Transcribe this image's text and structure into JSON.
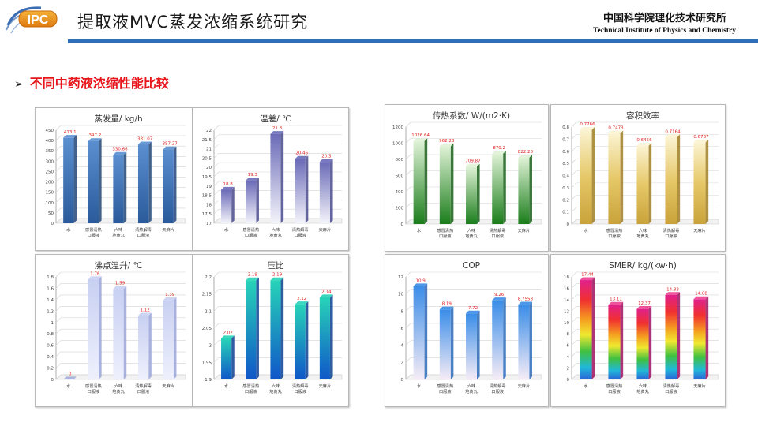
{
  "header": {
    "logo_text": "IPC",
    "title": "提取液MVC蒸发浓缩系统研究",
    "institute_cn": "中国科学院理化技术研究所",
    "institute_en": "Technical Institute of Physics and Chemistry"
  },
  "section": {
    "title": "不同中药液浓缩性能比较",
    "bullet": "➢"
  },
  "chart_data": [
    {
      "type": "bar",
      "title": "蒸发量/ kg/h",
      "categories": [
        "水",
        "感冒清热\n口服液",
        "六味\n地黄丸",
        "清热解毒\n口服液",
        "天麻片"
      ],
      "values": [
        413.1,
        397.2,
        330.66,
        381.07,
        357.27
      ],
      "labels": [
        "413.1",
        "397.2",
        "330.66",
        "381.07",
        "357.27"
      ],
      "ylim": [
        0,
        450
      ],
      "yticks": [
        0,
        50,
        100,
        150,
        200,
        250,
        300,
        350,
        400,
        450
      ],
      "color_top": "#5a8fd0",
      "color_bottom": "#2a5a9a",
      "color_side": "#1e4678",
      "style": "solid"
    },
    {
      "type": "bar",
      "title": "温差/ ℃",
      "categories": [
        "水",
        "感冒清热\n口服液",
        "六味\n地黄丸",
        "清热解毒\n口服液",
        "天麻片"
      ],
      "values": [
        18.8,
        19.3,
        21.8,
        20.46,
        20.3
      ],
      "labels": [
        "18.8",
        "19.3",
        "21.8",
        "20.46",
        "20.3"
      ],
      "ylim": [
        17,
        22
      ],
      "yticks": [
        17,
        17.5,
        18,
        18.5,
        19,
        19.5,
        20,
        20.5,
        21,
        21.5,
        22
      ],
      "color_top": "#6a6ab8",
      "color_bottom": "#f4f4fb",
      "color_side": "#4a4a8c",
      "style": "fade"
    },
    {
      "type": "bar",
      "title": "传热系数/ W/(m2·K)",
      "categories": [
        "水",
        "感冒清热\n口服液",
        "六味\n地黄丸",
        "清热解毒\n口服液",
        "天麻片"
      ],
      "values": [
        1026.64,
        962.28,
        709.87,
        870.2,
        822.28
      ],
      "labels": [
        "1026.64",
        "962.28",
        "709.87",
        "870.2",
        "822.28"
      ],
      "ylim": [
        0,
        1200
      ],
      "yticks": [
        0,
        200,
        400,
        600,
        800,
        1000,
        1200
      ],
      "color_top": "#dff2d6",
      "color_bottom": "#1a7d1a",
      "color_side": "#156015",
      "style": "fade-up"
    },
    {
      "type": "bar",
      "title": "容积效率",
      "categories": [
        "水",
        "感冒清热\n口服液",
        "六味\n地黄丸",
        "清热解毒\n口服液",
        "天麻片"
      ],
      "values": [
        0.7766,
        0.7473,
        0.6456,
        0.7164,
        0.6737
      ],
      "labels": [
        "0.7766",
        "0.7473",
        "0.6456",
        "0.7164",
        "0.6737"
      ],
      "ylim": [
        0,
        0.8
      ],
      "yticks": [
        0,
        0.1,
        0.2,
        0.3,
        0.4,
        0.5,
        0.6,
        0.7,
        0.8
      ],
      "color_top": "#fbf3d2",
      "color_bottom": "#c9a23a",
      "color_side": "#a07e22",
      "style": "gold"
    },
    {
      "type": "bar",
      "title": "沸点温升/ ℃",
      "categories": [
        "水",
        "感冒清热\n口服液",
        "六味\n地黄丸",
        "清热解毒\n口服液",
        "天麻片"
      ],
      "values": [
        0,
        1.76,
        1.59,
        1.12,
        1.39
      ],
      "labels": [
        "0",
        "1.76",
        "1.59",
        "1.12",
        "1.39"
      ],
      "ylim": [
        0,
        1.8
      ],
      "yticks": [
        0,
        0.2,
        0.4,
        0.6,
        0.8,
        1,
        1.2,
        1.4,
        1.6,
        1.8
      ],
      "color_top": "#c8d0f2",
      "color_bottom": "#eef0fc",
      "color_side": "#9aa4d8",
      "style": "solid"
    },
    {
      "type": "bar",
      "title": "压比",
      "categories": [
        "水",
        "感冒清热\n口服液",
        "六味\n地黄丸",
        "清热解毒\n口服液",
        "天麻片"
      ],
      "values": [
        2.02,
        2.19,
        2.19,
        2.12,
        2.14
      ],
      "labels": [
        "2.02",
        "2.19",
        "2.19",
        "2.12",
        "2.14"
      ],
      "ylim": [
        1.9,
        2.2
      ],
      "yticks": [
        1.9,
        1.95,
        2,
        2.05,
        2.1,
        2.15,
        2.2
      ],
      "color_top": "#27d3b8",
      "color_bottom": "#1056c8",
      "color_side": "#0c3f92",
      "style": "teal"
    },
    {
      "type": "bar",
      "title": "COP",
      "categories": [
        "水",
        "感冒清热\n口服液",
        "六味\n地黄丸",
        "清热解毒\n口服液",
        "天麻片"
      ],
      "values": [
        10.9,
        8.19,
        7.72,
        9.26,
        8.7558
      ],
      "labels": [
        "10.9",
        "8.19",
        "7.72",
        "9.26",
        "8.7558"
      ],
      "ylim": [
        0,
        12
      ],
      "yticks": [
        0,
        2,
        4,
        6,
        8,
        10,
        12
      ],
      "color_top": "#3a8de8",
      "color_bottom": "#f6ecf6",
      "color_side": "#2a6ab8",
      "style": "fade"
    },
    {
      "type": "bar",
      "title": "SMER/  kg/(kw·h)",
      "categories": [
        "水",
        "感冒清热\n口服液",
        "六味\n地黄丸",
        "清热解毒\n口服液",
        "天麻片"
      ],
      "values": [
        17.44,
        13.11,
        12.37,
        14.83,
        14.08
      ],
      "labels": [
        "17.44",
        "13.11",
        "12.37",
        "14.83",
        "14.08"
      ],
      "ylim": [
        0,
        18
      ],
      "yticks": [
        0,
        2,
        4,
        6,
        8,
        10,
        12,
        14,
        16,
        18
      ],
      "color_top": "#e0208c",
      "color_bottom": "#2a64d8",
      "color_side": "#a01060",
      "style": "rainbow"
    }
  ]
}
